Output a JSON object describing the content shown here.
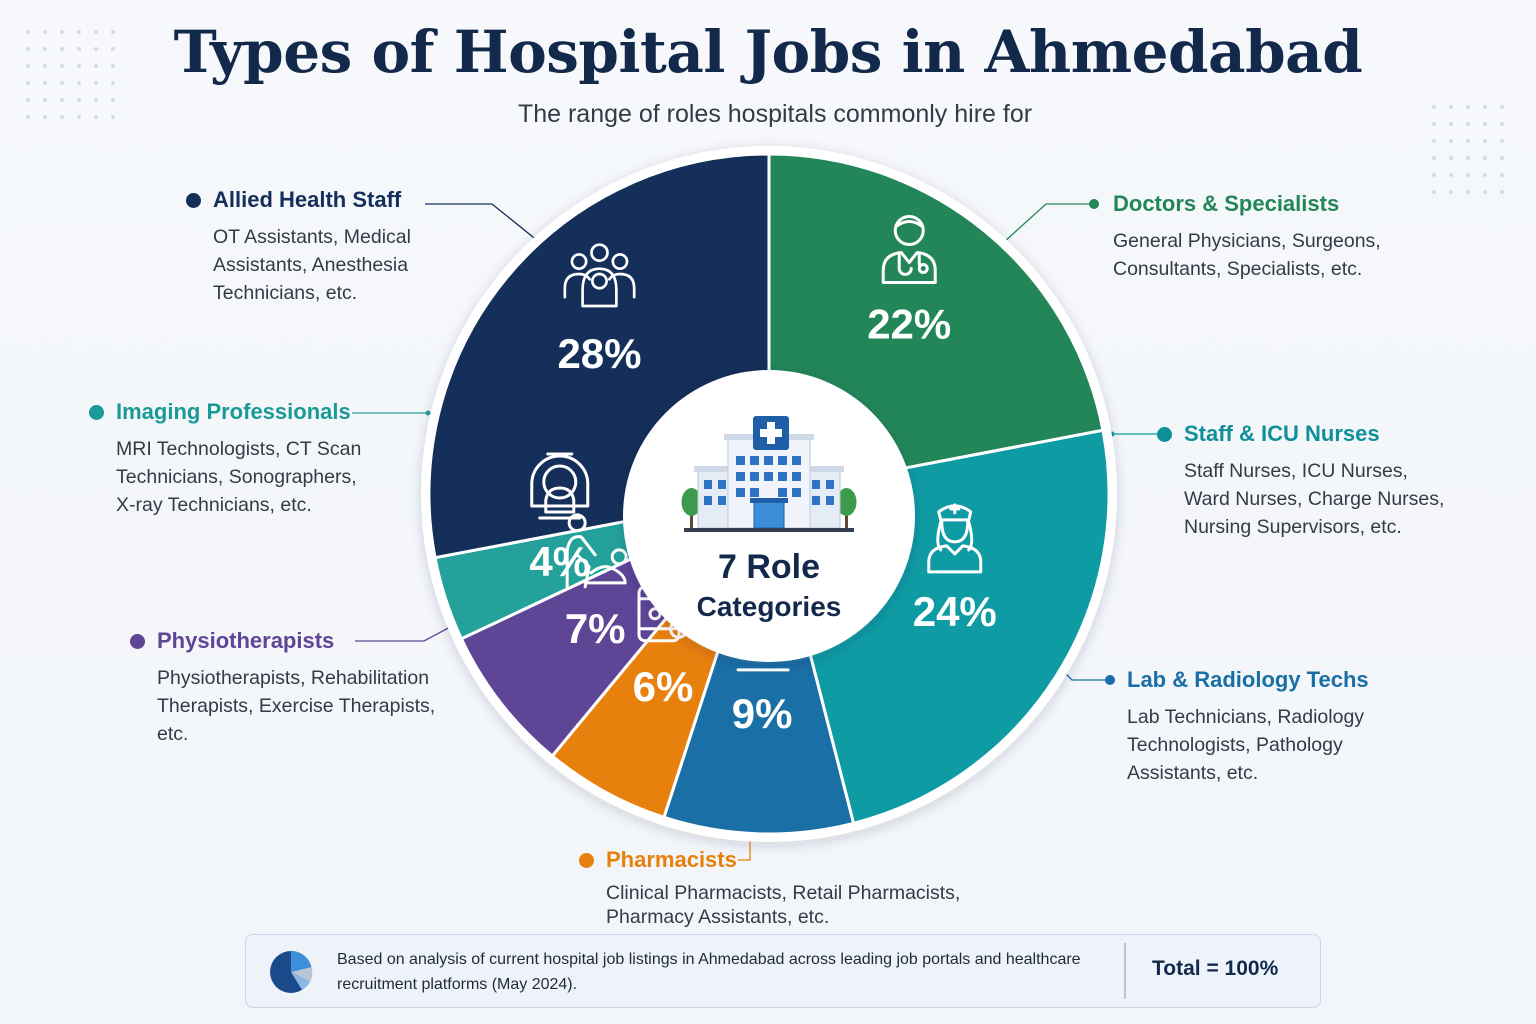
{
  "header": {
    "title": "Types of Hospital Jobs in Ahmedabad",
    "subtitle": "The range of roles hospitals commonly hire for"
  },
  "center": {
    "line1": "7 Role",
    "line2": "Categories"
  },
  "chart_data": {
    "type": "pie",
    "start_angle_deg": 0,
    "direction": "clockwise",
    "center_label": "7 Role Categories",
    "slices": [
      {
        "label": "Doctors & Specialists",
        "value": 22,
        "value_label": "22%",
        "color": "#228658",
        "icon": "doctor-icon",
        "description": "General Physicians, Surgeons, Consultants, Specialists, etc."
      },
      {
        "label": "Staff & ICU Nurses",
        "value": 24,
        "value_label": "24%",
        "color": "#0f9ba4",
        "icon": "nurse-icon",
        "description": "Staff Nurses, ICU Nurses, Ward Nurses, Charge Nurses, Nursing Supervisors, etc."
      },
      {
        "label": "Lab & Radiology Techs",
        "value": 9,
        "value_label": "9%",
        "color": "#1a6fa6",
        "icon": "microscope-icon",
        "description": "Lab Technicians, Radiology Technologists, Pathology Assistants, etc."
      },
      {
        "label": "Pharmacists",
        "value": 6,
        "value_label": "6%",
        "color": "#e8800e",
        "icon": "medicine-bottle-icon",
        "description": "Clinical Pharmacists, Retail Pharmacists, Pharmacy Assistants, etc."
      },
      {
        "label": "Physiotherapists",
        "value": 7,
        "value_label": "7%",
        "color": "#5e4596",
        "icon": "physiotherapy-icon",
        "description": "Physiotherapists, Rehabilitation Therapists, Exercise Therapists, etc."
      },
      {
        "label": "Imaging Professionals",
        "value": 4,
        "value_label": "4%",
        "color": "#24a19b",
        "icon": "mri-scanner-icon",
        "description": "MRI Technologists, CT Scan Technicians, Sonographers, X-ray Technicians, etc."
      },
      {
        "label": "Allied Health Staff",
        "value": 28,
        "value_label": "28%",
        "color": "#142f59",
        "icon": "group-icon",
        "description": "OT Assistants, Medical Assistants, Anesthesia Technicians, etc."
      }
    ]
  },
  "callouts": [
    {
      "title": "Allied Health Staff",
      "color": "#142f59",
      "desc_lines": [
        "OT Assistants, Medical",
        "Assistants, Anesthesia",
        "Technicians, etc."
      ]
    },
    {
      "title": "Doctors & Specialists",
      "color": "#228658",
      "desc_lines": [
        "General Physicians, Surgeons,",
        "Consultants, Specialists, etc."
      ]
    },
    {
      "title": "Imaging Professionals",
      "color": "#1a9a96",
      "desc_lines": [
        "MRI Technologists, CT Scan",
        "Technicians, Sonographers,",
        "X-ray Technicians, etc."
      ]
    },
    {
      "title": "Staff & ICU Nurses",
      "color": "#0f8f9a",
      "desc_lines": [
        "Staff Nurses, ICU Nurses,",
        "Ward Nurses, Charge Nurses,",
        "Nursing Supervisors, etc."
      ]
    },
    {
      "title": "Physiotherapists",
      "color": "#5e4596",
      "desc_lines": [
        "Physiotherapists, Rehabilitation",
        "Therapists, Exercise Therapists,",
        "etc."
      ]
    },
    {
      "title": "Lab & Radiology Techs",
      "color": "#1a6fa6",
      "desc_lines": [
        "Lab Technicians, Radiology",
        "Technologists, Pathology",
        "Assistants, etc."
      ]
    },
    {
      "title": "Pharmacists",
      "color": "#e8800e",
      "desc_lines": [
        "Clinical Pharmacists, Retail Pharmacists,",
        "Pharmacy Assistants, etc."
      ]
    }
  ],
  "footer": {
    "note_line1": "Based on analysis of current hospital job listings in Ahmedabad across leading job portals and healthcare",
    "note_line2": "recruitment platforms (May 2024).",
    "total": "Total = 100%"
  }
}
